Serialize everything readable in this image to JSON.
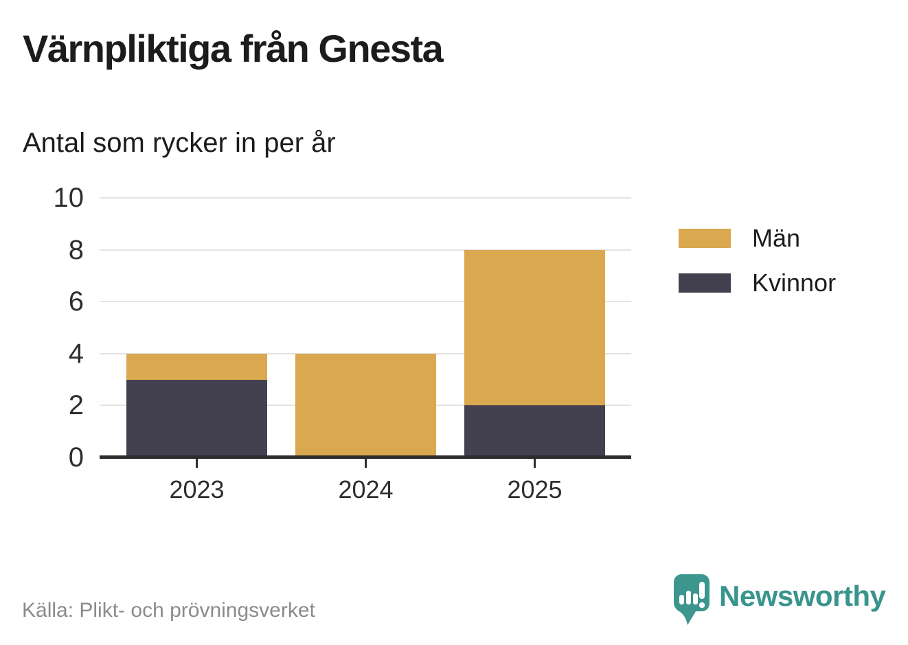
{
  "chart_data": {
    "type": "bar",
    "stacked": true,
    "title": "Värnpliktiga från Gnesta",
    "subtitle": "Antal som rycker in per år",
    "categories": [
      "2023",
      "2024",
      "2025"
    ],
    "series": [
      {
        "name": "Män",
        "color": "#d9a84f",
        "values": [
          1,
          4,
          6
        ]
      },
      {
        "name": "Kvinnor",
        "color": "#434050",
        "values": [
          3,
          0,
          2
        ]
      }
    ],
    "stack_order_bottom_to_top": [
      "Kvinnor",
      "Män"
    ],
    "totals": [
      4,
      4,
      8
    ],
    "xlabel": "",
    "ylabel": "",
    "ylim": [
      0,
      10
    ],
    "yticks": [
      0,
      2,
      4,
      6,
      8,
      10
    ],
    "grid": "horizontal",
    "legend_position": "right"
  },
  "footer": {
    "source": "Källa: Plikt- och prövningsverket",
    "brand_name": "Newsworthy",
    "brand_color": "#38948c"
  }
}
